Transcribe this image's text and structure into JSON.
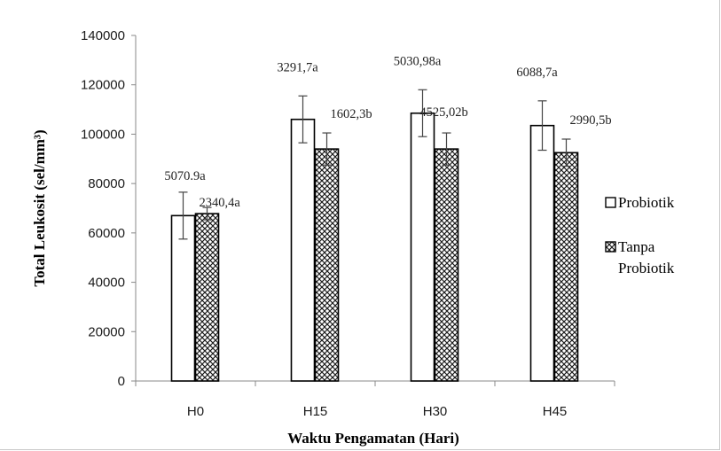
{
  "chart_data": {
    "type": "bar",
    "ylabel": "Total Leukosit (sel/mm³)",
    "xlabel": "Waktu Pengamatan (Hari)",
    "ylim": [
      0,
      140000
    ],
    "yticks": [
      "0",
      "20000",
      "40000",
      "60000",
      "80000",
      "100000",
      "120000",
      "140000"
    ],
    "grid": false,
    "legend_position": "right",
    "categories": [
      "H0",
      "H15",
      "H30",
      "H45"
    ],
    "series": [
      {
        "name": "Probiotik",
        "fill": "#ffffff",
        "values": [
          67000,
          106000,
          108500,
          103500
        ],
        "errors": [
          9500,
          9500,
          9500,
          10000
        ],
        "labels": [
          "5070.9a",
          "3291,7a",
          "5030,98a",
          "6088,7a"
        ]
      },
      {
        "name": "Tanpa Probiotik",
        "fill": "hatch",
        "values": [
          67800,
          94000,
          94000,
          92500
        ],
        "errors": [
          2500,
          6500,
          6500,
          5500
        ],
        "labels": [
          "2340,4a",
          "1602,3b",
          "4525,02b",
          "2990,5b"
        ]
      }
    ],
    "legend_labels": [
      "Probiotik",
      "Tanpa",
      "Probiotik"
    ]
  }
}
